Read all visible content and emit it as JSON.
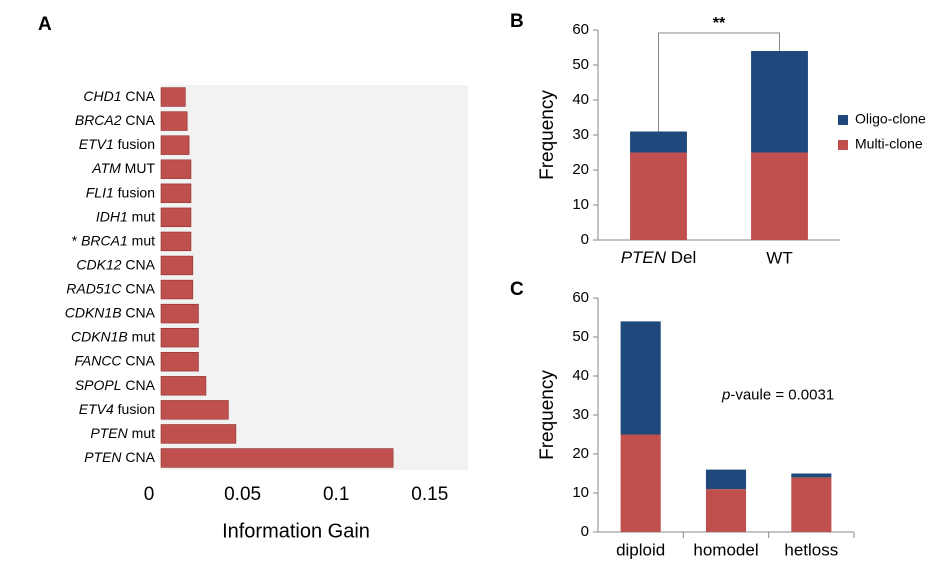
{
  "chart_data": [
    {
      "type": "hbar",
      "panel": "A",
      "categories": [
        "CHD1 CNA",
        "BRCA2 CNA",
        "ETV1 fusion",
        "ATM MUT",
        "FLI1 fusion",
        "IDH1 mut",
        "* BRCA1 mut",
        "CDK12 CNA",
        "RAD51C CNA",
        "CDKN1B CNA",
        "CDKN1B mut",
        "FANCC CNA",
        "SPOPL CNA",
        "ETV4 fusion",
        "PTEN mut",
        "PTEN CNA"
      ],
      "values": [
        0.013,
        0.014,
        0.015,
        0.016,
        0.016,
        0.016,
        0.016,
        0.017,
        0.017,
        0.02,
        0.02,
        0.02,
        0.024,
        0.036,
        0.04,
        0.124
      ],
      "color": "#c0504d",
      "xlim": [
        0,
        0.164
      ],
      "xticks": [
        0,
        0.05,
        0.1,
        0.15
      ],
      "xlabel": "Information Gain"
    },
    {
      "type": "stacked_bar",
      "panel": "B",
      "categories": [
        "PTEN Del",
        "WT"
      ],
      "series": [
        {
          "name": "Multi-clone",
          "color": "#c0504d",
          "values": [
            25,
            25
          ]
        },
        {
          "name": "Oligo-clone",
          "color": "#1f497d",
          "values": [
            6,
            29
          ]
        }
      ],
      "ylim": [
        0,
        60
      ],
      "yticks": [
        0,
        10,
        20,
        30,
        40,
        50,
        60
      ],
      "ylabel": "Frequency",
      "annotation": "**",
      "legend": "right"
    },
    {
      "type": "stacked_bar",
      "panel": "C",
      "categories": [
        "diploid",
        "homodel",
        "hetloss"
      ],
      "series": [
        {
          "name": "Multi-clone",
          "color": "#c0504d",
          "values": [
            25,
            11,
            14
          ]
        },
        {
          "name": "Oligo-clone",
          "color": "#1f497d",
          "values": [
            29,
            5,
            1
          ]
        }
      ],
      "ylim": [
        0,
        60
      ],
      "yticks": [
        0,
        10,
        20,
        30,
        40,
        50,
        60
      ],
      "ylabel": "Frequency",
      "annotation": "p-vaule = 0.0031"
    }
  ]
}
